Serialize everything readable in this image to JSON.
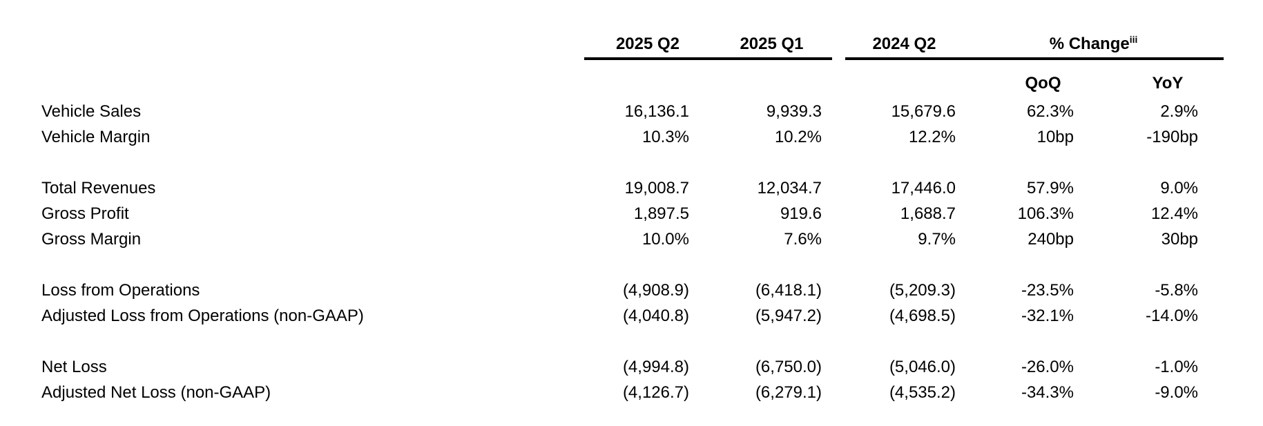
{
  "page": {
    "background_color": "#ffffff",
    "text_color": "#000000",
    "rule_color": "#000000"
  },
  "table": {
    "period_headers": [
      "2025 Q2",
      "2025 Q1",
      "2024 Q2"
    ],
    "change_header": {
      "label": "% Change",
      "superscript": "iii"
    },
    "change_subheaders": [
      "QoQ",
      "YoY"
    ],
    "groups": [
      {
        "rows": [
          {
            "label": "Vehicle Sales",
            "values": [
              "16,136.1",
              "9,939.3",
              "15,679.6",
              "62.3%",
              "2.9%"
            ]
          },
          {
            "label": "Vehicle Margin",
            "values": [
              "10.3%",
              "10.2%",
              "12.2%",
              "10bp",
              "-190bp"
            ]
          }
        ]
      },
      {
        "rows": [
          {
            "label": "Total Revenues",
            "values": [
              "19,008.7",
              "12,034.7",
              "17,446.0",
              "57.9%",
              "9.0%"
            ]
          },
          {
            "label": "Gross Profit",
            "values": [
              "1,897.5",
              "919.6",
              "1,688.7",
              "106.3%",
              "12.4%"
            ]
          },
          {
            "label": "Gross Margin",
            "values": [
              "10.0%",
              "7.6%",
              "9.7%",
              "240bp",
              "30bp"
            ]
          }
        ]
      },
      {
        "rows": [
          {
            "label": "Loss from Operations",
            "values": [
              "(4,908.9)",
              "(6,418.1)",
              "(5,209.3)",
              "-23.5%",
              "-5.8%"
            ]
          },
          {
            "label": "Adjusted Loss from Operations (non-GAAP)",
            "values": [
              "(4,040.8)",
              "(5,947.2)",
              "(4,698.5)",
              "-32.1%",
              "-14.0%"
            ]
          }
        ]
      },
      {
        "rows": [
          {
            "label": "Net Loss",
            "values": [
              "(4,994.8)",
              "(6,750.0)",
              "(5,046.0)",
              "-26.0%",
              "-1.0%"
            ]
          },
          {
            "label": "Adjusted Net Loss (non-GAAP)",
            "values": [
              "(4,126.7)",
              "(6,279.1)",
              "(4,535.2)",
              "-34.3%",
              "-9.0%"
            ]
          }
        ]
      }
    ]
  }
}
